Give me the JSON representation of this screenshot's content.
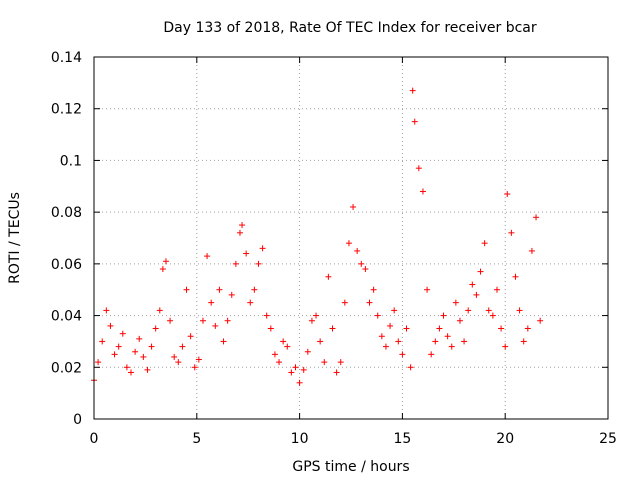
{
  "chart_data": {
    "type": "scatter",
    "title": "Day 133 of 2018, Rate Of TEC Index for receiver bcar",
    "xlabel": "GPS time / hours",
    "ylabel": "ROTI / TECUs",
    "xlim": [
      0,
      25
    ],
    "ylim": [
      0,
      0.14
    ],
    "xticks": [
      "0",
      "5",
      "10",
      "15",
      "20",
      "25"
    ],
    "yticks": [
      "0",
      "0.02",
      "0.04",
      "0.06",
      "0.08",
      "0.1",
      "0.12",
      "0.14"
    ],
    "grid": true,
    "marker": "plus",
    "color": "#ff0000",
    "series": [
      {
        "name": "ROTI",
        "x": [
          0.0,
          0.2,
          0.4,
          0.6,
          0.8,
          1.0,
          1.2,
          1.4,
          1.6,
          1.8,
          2.0,
          2.2,
          2.4,
          2.6,
          2.8,
          3.0,
          3.2,
          3.35,
          3.5,
          3.7,
          3.9,
          4.1,
          4.3,
          4.5,
          4.7,
          4.9,
          5.1,
          5.3,
          5.5,
          5.7,
          5.9,
          6.1,
          6.3,
          6.5,
          6.7,
          6.9,
          7.1,
          7.2,
          7.4,
          7.6,
          7.8,
          8.0,
          8.2,
          8.4,
          8.6,
          8.8,
          9.0,
          9.2,
          9.4,
          9.6,
          9.8,
          10.0,
          10.2,
          10.4,
          10.6,
          10.8,
          11.0,
          11.2,
          11.4,
          11.6,
          11.8,
          12.0,
          12.2,
          12.4,
          12.6,
          12.8,
          13.0,
          13.2,
          13.4,
          13.6,
          13.8,
          14.0,
          14.2,
          14.4,
          14.6,
          14.8,
          15.0,
          15.2,
          15.4,
          15.5,
          15.6,
          15.8,
          16.0,
          16.2,
          16.4,
          16.6,
          16.8,
          17.0,
          17.2,
          17.4,
          17.6,
          17.8,
          18.0,
          18.2,
          18.4,
          18.6,
          18.8,
          19.0,
          19.2,
          19.4,
          19.6,
          19.8,
          20.0,
          20.1,
          20.3,
          20.5,
          20.7,
          20.9,
          21.1,
          21.3,
          21.5,
          21.7
        ],
        "y": [
          0.015,
          0.022,
          0.03,
          0.042,
          0.036,
          0.025,
          0.028,
          0.033,
          0.02,
          0.018,
          0.026,
          0.031,
          0.024,
          0.019,
          0.028,
          0.035,
          0.042,
          0.058,
          0.061,
          0.038,
          0.024,
          0.022,
          0.028,
          0.05,
          0.032,
          0.02,
          0.023,
          0.038,
          0.063,
          0.045,
          0.036,
          0.05,
          0.03,
          0.038,
          0.048,
          0.06,
          0.072,
          0.075,
          0.064,
          0.045,
          0.05,
          0.06,
          0.066,
          0.04,
          0.035,
          0.025,
          0.022,
          0.03,
          0.028,
          0.018,
          0.02,
          0.014,
          0.019,
          0.026,
          0.038,
          0.04,
          0.03,
          0.022,
          0.055,
          0.035,
          0.018,
          0.022,
          0.045,
          0.068,
          0.082,
          0.065,
          0.06,
          0.058,
          0.045,
          0.05,
          0.04,
          0.032,
          0.028,
          0.036,
          0.042,
          0.03,
          0.025,
          0.035,
          0.02,
          0.127,
          0.115,
          0.097,
          0.088,
          0.05,
          0.025,
          0.03,
          0.035,
          0.04,
          0.032,
          0.028,
          0.045,
          0.038,
          0.03,
          0.042,
          0.052,
          0.048,
          0.057,
          0.068,
          0.042,
          0.04,
          0.05,
          0.035,
          0.028,
          0.087,
          0.072,
          0.055,
          0.042,
          0.03,
          0.035,
          0.065,
          0.078,
          0.038
        ]
      }
    ]
  }
}
